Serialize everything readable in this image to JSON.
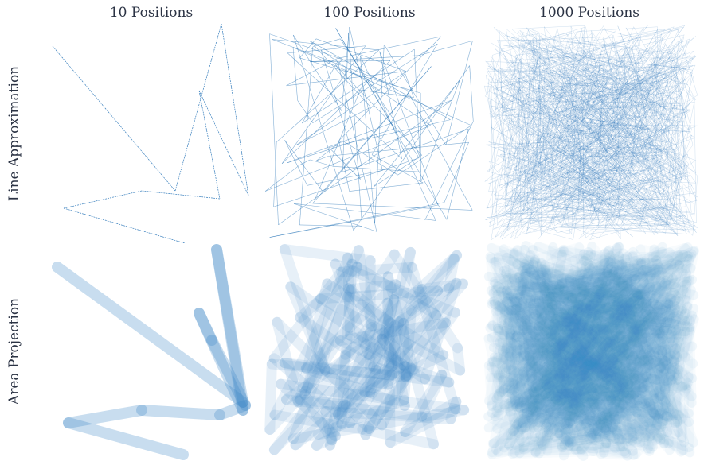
{
  "figure": {
    "columns": [
      "10 Positions",
      "100 Positions",
      "1000 Positions"
    ],
    "rows": [
      "Line Approximation",
      "Area Projection"
    ]
  },
  "palette": {
    "line": "#1f6fb5",
    "area": "#3a86c6",
    "text": "#2b3344"
  },
  "panels": [
    {
      "row": "Line Approximation",
      "column": "10 Positions",
      "positions": 10
    },
    {
      "row": "Line Approximation",
      "column": "100 Positions",
      "positions": 100
    },
    {
      "row": "Line Approximation",
      "column": "1000 Positions",
      "positions": 1000
    },
    {
      "row": "Area Projection",
      "column": "10 Positions",
      "positions": 10
    },
    {
      "row": "Area Projection",
      "column": "100 Positions",
      "positions": 100
    },
    {
      "row": "Area Projection",
      "column": "1000 Positions",
      "positions": 1000
    }
  ]
}
